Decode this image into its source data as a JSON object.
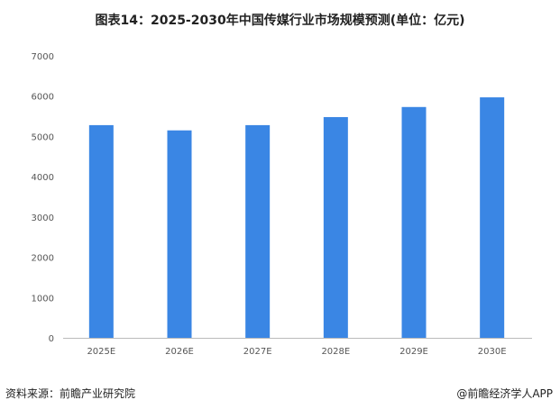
{
  "chart_data": {
    "type": "bar",
    "title": "图表14：2025-2030年中国传媒行业市场规模预测(单位：亿元)",
    "categories": [
      "2025E",
      "2026E",
      "2027E",
      "2028E",
      "2029E",
      "2030E"
    ],
    "values": [
      5280,
      5150,
      5280,
      5480,
      5730,
      5970
    ],
    "ylim": [
      0,
      7000
    ],
    "yticks": [
      0,
      1000,
      2000,
      3000,
      4000,
      5000,
      6000,
      7000
    ],
    "xlabel": "",
    "ylabel": "",
    "grid": false,
    "bar_color": "#3a86e4"
  },
  "footer": {
    "source": "资料来源：前瞻产业研究院",
    "brand": "@前瞻经济学人APP"
  }
}
